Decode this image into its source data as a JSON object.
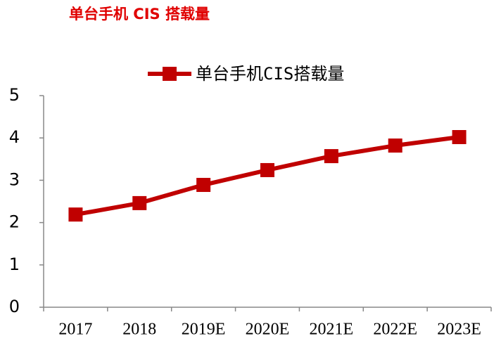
{
  "chart_data": {
    "type": "line",
    "title": "单台手机 CIS 搭载量",
    "categories": [
      "2017",
      "2018",
      "2019E",
      "2020E",
      "2021E",
      "2022E",
      "2023E"
    ],
    "series": [
      {
        "name": "单台手机CIS搭载量",
        "color": "#c00000",
        "values": [
          2.19,
          2.46,
          2.89,
          3.24,
          3.57,
          3.82,
          4.02
        ]
      }
    ],
    "ylim": [
      0,
      5
    ],
    "yticks": [
      0,
      1,
      2,
      3,
      4,
      5
    ],
    "grid": false,
    "legend": "top"
  }
}
